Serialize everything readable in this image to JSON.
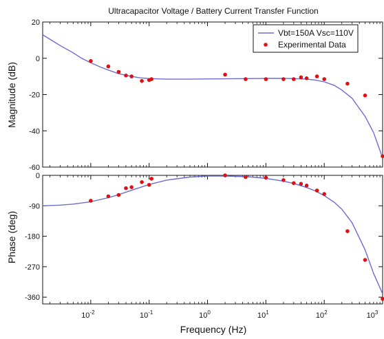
{
  "chart_data": [
    {
      "type": "line",
      "title": "Ultracapacitor Voltage / Battery Current Transfer Function",
      "xlabel": "",
      "ylabel": "Magnitude (dB)",
      "xscale": "log",
      "xlim": [
        0.0015,
        1000
      ],
      "ylim": [
        -60,
        20
      ],
      "yticks": [
        20,
        0,
        -20,
        -40,
        -60
      ],
      "xticks": [
        {
          "value": 0.01,
          "base": "10",
          "exp": "-2"
        },
        {
          "value": 0.1,
          "base": "10",
          "exp": "-1"
        },
        {
          "value": 1,
          "base": "10",
          "exp": "0"
        },
        {
          "value": 10,
          "base": "10",
          "exp": "1"
        },
        {
          "value": 100,
          "base": "10",
          "exp": "2"
        },
        {
          "value": 1000,
          "base": "10",
          "exp": "3"
        }
      ],
      "grid": false,
      "legend": {
        "position": "top-right",
        "model_label": "Vbt=150A Vsc=110V",
        "data_label": "Experimental Data"
      },
      "series": [
        {
          "name": "Vbt=150A Vsc=110V",
          "style": "line",
          "color": "#6b6bd6",
          "x": [
            0.0015,
            0.002,
            0.003,
            0.005,
            0.007,
            0.01,
            0.015,
            0.02,
            0.03,
            0.05,
            0.07,
            0.1,
            0.2,
            0.5,
            1,
            2,
            5,
            10,
            20,
            30,
            50,
            70,
            100,
            150,
            200,
            300,
            500,
            700,
            1000
          ],
          "y": [
            13,
            10.5,
            7,
            3,
            0,
            -2.5,
            -5,
            -6.5,
            -8.5,
            -10,
            -10.8,
            -11.2,
            -11.5,
            -11.5,
            -11.4,
            -11.3,
            -11.2,
            -11.1,
            -11.1,
            -11.2,
            -11.5,
            -12,
            -13,
            -15,
            -17.5,
            -22,
            -32,
            -41,
            -55
          ]
        },
        {
          "name": "Experimental Data",
          "style": "scatter",
          "color": "#dd1111",
          "x": [
            0.01,
            0.02,
            0.03,
            0.04,
            0.05,
            0.075,
            0.1,
            0.11,
            2,
            4.5,
            10,
            20,
            30,
            40,
            50,
            75,
            100,
            250,
            500,
            1000
          ],
          "y": [
            -1.5,
            -4.5,
            -7.5,
            -9.5,
            -10,
            -12.5,
            -12,
            -11.5,
            -9,
            -11.5,
            -11.5,
            -11.5,
            -11.5,
            -10.5,
            -11,
            -10,
            -11.5,
            -14,
            -20.5,
            -54
          ]
        }
      ]
    },
    {
      "type": "line",
      "title": "",
      "xlabel": "Frequency (Hz)",
      "ylabel": "Phase (deg)",
      "xscale": "log",
      "xlim": [
        0.0015,
        1000
      ],
      "ylim": [
        -380,
        0
      ],
      "yticks": [
        0,
        -90,
        -180,
        -270,
        -360
      ],
      "xticks": [
        {
          "value": 0.01,
          "base": "10",
          "exp": "-2"
        },
        {
          "value": 0.1,
          "base": "10",
          "exp": "-1"
        },
        {
          "value": 1,
          "base": "10",
          "exp": "0"
        },
        {
          "value": 10,
          "base": "10",
          "exp": "1"
        },
        {
          "value": 100,
          "base": "10",
          "exp": "2"
        },
        {
          "value": 1000,
          "base": "10",
          "exp": "3"
        }
      ],
      "grid": false,
      "series": [
        {
          "name": "Vbt=150A Vsc=110V",
          "style": "line",
          "color": "#6b6bd6",
          "x": [
            0.0015,
            0.003,
            0.005,
            0.01,
            0.02,
            0.03,
            0.05,
            0.1,
            0.2,
            0.5,
            1,
            2,
            5,
            10,
            20,
            30,
            50,
            70,
            100,
            150,
            200,
            300,
            500,
            700,
            1000
          ],
          "y": [
            -90,
            -88,
            -85,
            -78,
            -66,
            -57,
            -44,
            -27,
            -14,
            -5,
            -2,
            -2,
            -4,
            -9,
            -17,
            -24,
            -36,
            -46,
            -60,
            -80,
            -100,
            -140,
            -220,
            -290,
            -350
          ]
        },
        {
          "name": "Experimental Data",
          "style": "scatter",
          "color": "#dd1111",
          "x": [
            0.01,
            0.02,
            0.03,
            0.04,
            0.05,
            0.075,
            0.1,
            0.11,
            2,
            4.5,
            10,
            20,
            30,
            40,
            50,
            75,
            100,
            250,
            500,
            1000
          ],
          "y": [
            -75,
            -62,
            -58,
            -38,
            -35,
            -20,
            -28,
            -10,
            0,
            -5,
            -7,
            -14,
            -23,
            -25,
            -30,
            -45,
            -55,
            -165,
            -250,
            -365
          ]
        }
      ]
    }
  ]
}
